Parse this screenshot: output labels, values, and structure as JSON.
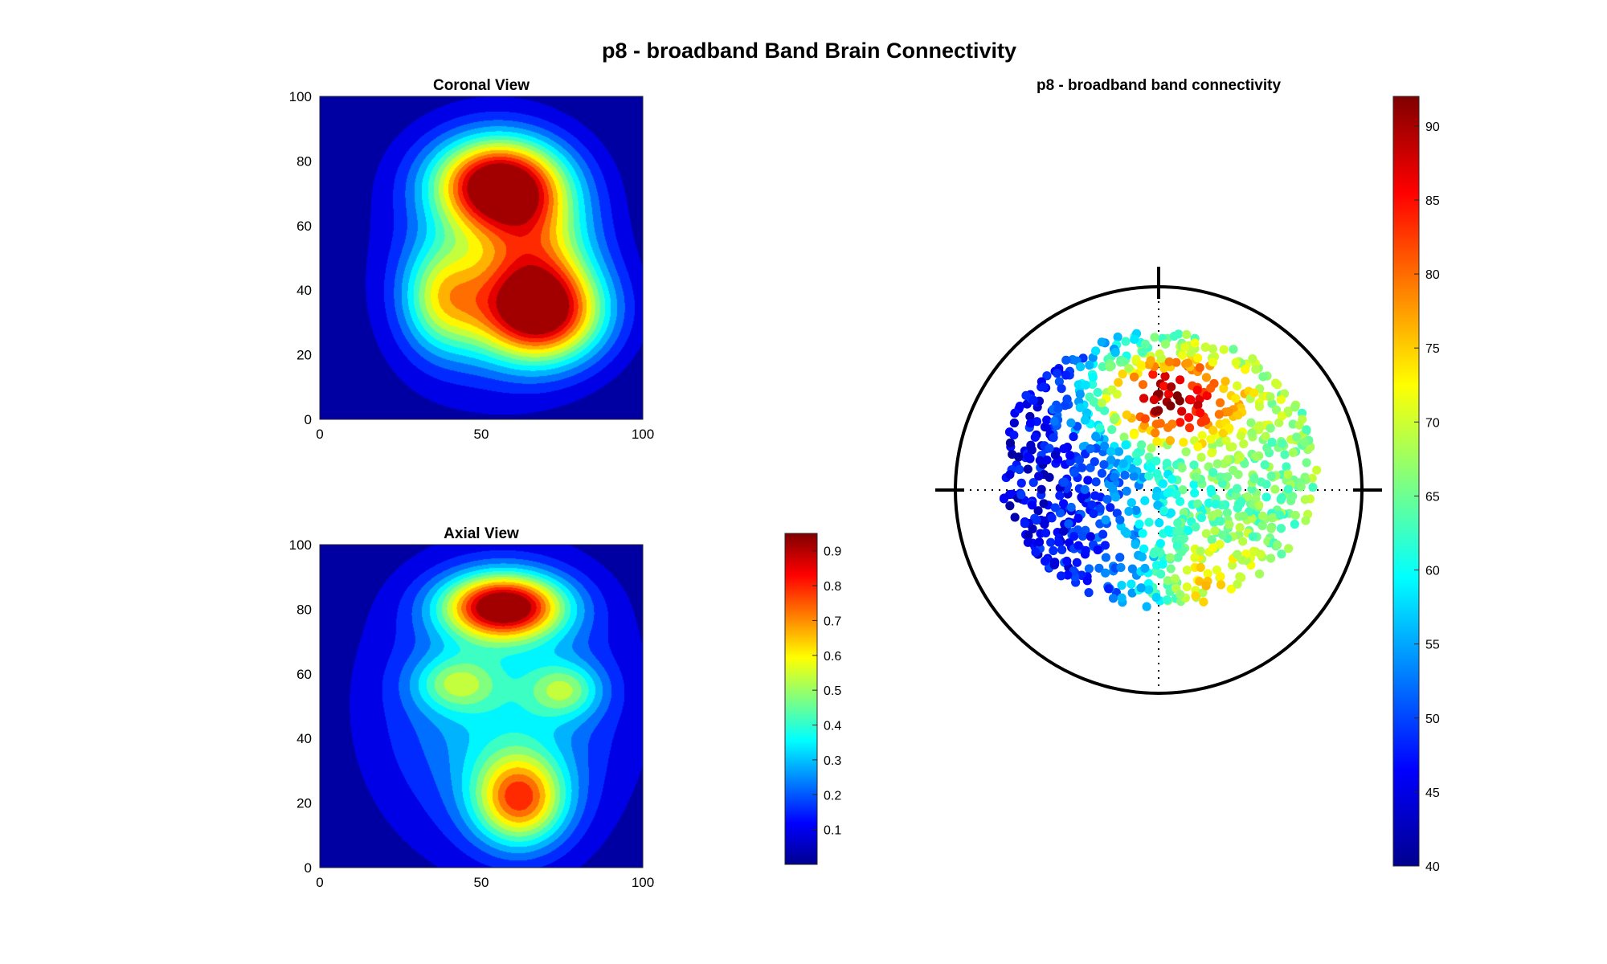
{
  "figure": {
    "title": "p8 - broadband Band Brain Connectivity"
  },
  "chart_data": [
    {
      "type": "heatmap",
      "id": "coronal",
      "title": "Coronal View",
      "xlabel": "",
      "ylabel": "",
      "xlim": [
        0,
        100
      ],
      "ylim": [
        0,
        100
      ],
      "xticks": [
        0,
        50,
        100
      ],
      "yticks": [
        0,
        20,
        40,
        60,
        80,
        100
      ],
      "colormap": "jet",
      "clim": [
        0,
        0.95
      ],
      "levels": 15,
      "grid": false,
      "peaks": [
        {
          "x": 55,
          "y": 73,
          "sx": 14,
          "sy": 10,
          "a": 0.88
        },
        {
          "x": 68,
          "y": 33,
          "sx": 14,
          "sy": 11,
          "a": 0.88
        },
        {
          "x": 66,
          "y": 55,
          "sx": 13,
          "sy": 14,
          "a": 0.4
        },
        {
          "x": 38,
          "y": 38,
          "sx": 9,
          "sy": 12,
          "a": 0.42
        },
        {
          "x": 52,
          "y": 48,
          "sx": 24,
          "sy": 30,
          "a": 0.18
        }
      ]
    },
    {
      "type": "heatmap",
      "id": "axial",
      "title": "Axial View",
      "xlabel": "",
      "ylabel": "",
      "xlim": [
        0,
        100
      ],
      "ylim": [
        0,
        100
      ],
      "xticks": [
        0,
        50,
        100
      ],
      "yticks": [
        0,
        20,
        40,
        60,
        80,
        100
      ],
      "colormap": "jet",
      "clim": [
        0,
        0.95
      ],
      "levels": 15,
      "grid": false,
      "peaks": [
        {
          "x": 57,
          "y": 81,
          "sx": 13,
          "sy": 7,
          "a": 0.88
        },
        {
          "x": 76,
          "y": 55,
          "sx": 8,
          "sy": 6,
          "a": 0.3
        },
        {
          "x": 42,
          "y": 57,
          "sx": 9,
          "sy": 6,
          "a": 0.28
        },
        {
          "x": 62,
          "y": 21,
          "sx": 10,
          "sy": 10,
          "a": 0.62
        },
        {
          "x": 56,
          "y": 50,
          "sx": 26,
          "sy": 30,
          "a": 0.32
        }
      ],
      "colorbar": {
        "ticks": [
          0.1,
          0.2,
          0.3,
          0.4,
          0.5,
          0.6,
          0.7,
          0.8,
          0.9
        ],
        "tick_labels": [
          "0.1",
          "0.2",
          "0.3",
          "0.4",
          "0.5",
          "0.6",
          "0.7",
          "0.8",
          "0.9"
        ],
        "range": [
          0,
          0.95
        ]
      }
    },
    {
      "type": "scatter",
      "id": "topo",
      "title": "p8 - broadband band connectivity",
      "xlabel": "",
      "ylabel": "",
      "xlim": [
        -1,
        1
      ],
      "ylim": [
        -1,
        1
      ],
      "colormap": "jet",
      "clim": [
        40,
        92
      ],
      "point_count": 1000,
      "grid": false,
      "distribution": {
        "ellipse_center": [
          0.0,
          0.1
        ],
        "ellipse_radii": [
          0.78,
          0.68
        ],
        "left_color_value": 45,
        "right_color_value": 66,
        "front_peak": {
          "x": 0.05,
          "y": 0.45,
          "value": 92
        },
        "back_peak": {
          "x": 0.25,
          "y": -0.45,
          "value": 80
        }
      },
      "colorbar": {
        "ticks": [
          40,
          45,
          50,
          55,
          60,
          65,
          70,
          75,
          80,
          85,
          90
        ],
        "tick_labels": [
          "40",
          "45",
          "50",
          "55",
          "60",
          "65",
          "70",
          "75",
          "80",
          "85",
          "90"
        ],
        "range": [
          40,
          92
        ]
      }
    }
  ]
}
